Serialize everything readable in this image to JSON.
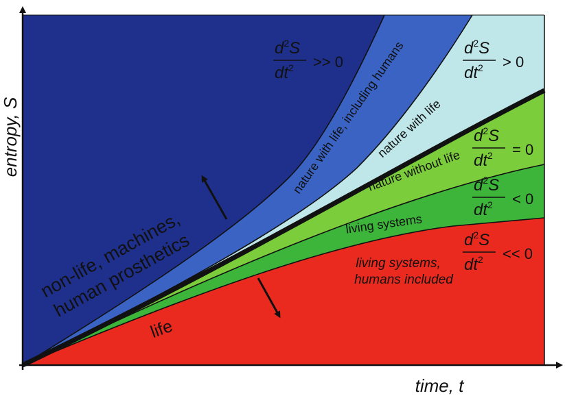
{
  "axes": {
    "y_label": "entropy, S",
    "x_label": "time, t"
  },
  "regions": [
    {
      "id": "non-life",
      "lines": [
        "non-life, machines,",
        "human prosthetics"
      ],
      "color": "#1f2f8c"
    },
    {
      "id": "nature-with-life-humans",
      "text": "nature with life, including humans",
      "color": "#3a63c4"
    },
    {
      "id": "nature-with-life",
      "text": "nature with life",
      "color": "#bfe7ea"
    },
    {
      "id": "nature-without-life",
      "text": "nature without life",
      "color": "#7ccd3c"
    },
    {
      "id": "living-systems",
      "text": "living systems",
      "color": "#3cb53a"
    },
    {
      "id": "living-systems-humans",
      "lines": [
        "living systems,",
        "humans included"
      ],
      "color": "#ea2a1f"
    },
    {
      "id": "life",
      "text": "life",
      "color": "#ea2a1f"
    }
  ],
  "formulas": [
    {
      "id": "much-greater",
      "numerator": "d",
      "num_exp": "2",
      "num_var": "S",
      "denominator": "dt",
      "den_exp": "2",
      "relation": ">> 0"
    },
    {
      "id": "greater",
      "numerator": "d",
      "num_exp": "2",
      "num_var": "S",
      "denominator": "dt",
      "den_exp": "2",
      "relation": "> 0"
    },
    {
      "id": "equal",
      "numerator": "d",
      "num_exp": "2",
      "num_var": "S",
      "denominator": "dt",
      "den_exp": "2",
      "relation": "= 0"
    },
    {
      "id": "less",
      "numerator": "d",
      "num_exp": "2",
      "num_var": "S",
      "denominator": "dt",
      "den_exp": "2",
      "relation": "< 0"
    },
    {
      "id": "much-less",
      "numerator": "d",
      "num_exp": "2",
      "num_var": "S",
      "denominator": "dt",
      "den_exp": "2",
      "relation": "<< 0"
    }
  ]
}
